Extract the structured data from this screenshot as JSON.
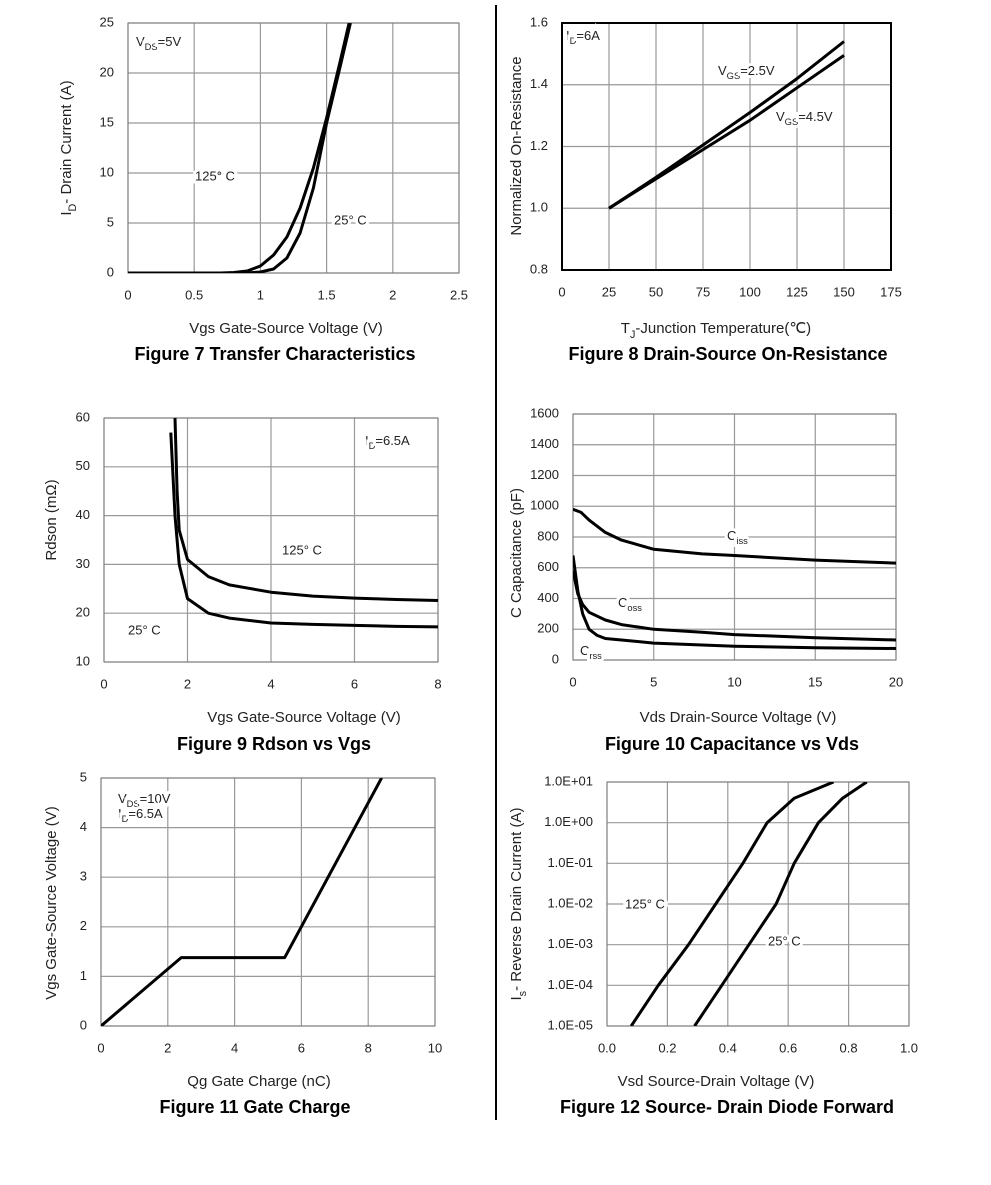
{
  "chart_data": [
    {
      "type": "line",
      "title": "Figure 7 Transfer Characteristics",
      "xlabel": "Vgs Gate-Source Voltage (V)",
      "ylabel": [
        "I",
        "D",
        "- Drain Current (A)"
      ],
      "annotations": [
        [
          "V",
          "DS",
          "=5V"
        ]
      ],
      "xlim": [
        0,
        2.5
      ],
      "ylim": [
        0,
        25
      ],
      "xticks": [
        0,
        0.5,
        1,
        1.5,
        2,
        2.5
      ],
      "yticks": [
        0,
        5,
        10,
        15,
        20,
        25
      ],
      "grid": true,
      "series": [
        {
          "name": "125° C",
          "color": "#000000",
          "x": [
            0,
            0.7,
            0.8,
            0.9,
            1.0,
            1.1,
            1.2,
            1.3,
            1.4,
            1.5,
            1.6,
            1.67
          ],
          "values": [
            0,
            0,
            0.05,
            0.2,
            0.7,
            1.8,
            3.6,
            6.5,
            10.5,
            15.5,
            21,
            25
          ]
        },
        {
          "name": "25° C",
          "color": "#000000",
          "x": [
            0,
            0.9,
            1.0,
            1.1,
            1.2,
            1.3,
            1.4,
            1.5,
            1.6,
            1.68
          ],
          "values": [
            0,
            0,
            0.1,
            0.4,
            1.5,
            4,
            8.5,
            15,
            20.5,
            25
          ]
        }
      ]
    },
    {
      "type": "line",
      "title": "Figure 8 Drain-Source On-Resistance",
      "xlabel": [
        "T",
        "J",
        "-Junction Temperature(℃)"
      ],
      "ylabel": "Normalized On-Resistance",
      "annotations": [
        [
          "I",
          "D",
          "=6A"
        ]
      ],
      "xlim": [
        0,
        175
      ],
      "ylim": [
        0.8,
        1.6
      ],
      "xticks": [
        0,
        25,
        50,
        75,
        100,
        125,
        150,
        175
      ],
      "yticks": [
        0.8,
        {
          "value": 1.0,
          "label": "1.0"
        },
        1.2,
        1.4,
        1.6
      ],
      "grid": true,
      "series": [
        {
          "name": [
            "V",
            "GS",
            "=2.5V"
          ],
          "color": "#000000",
          "x": [
            25,
            50,
            75,
            100,
            125,
            150
          ],
          "values": [
            1.0,
            1.1,
            1.205,
            1.31,
            1.42,
            1.54
          ]
        },
        {
          "name": [
            "V",
            "GS",
            "=4.5V"
          ],
          "color": "#000000",
          "x": [
            25,
            50,
            75,
            100,
            125,
            150
          ],
          "values": [
            1.0,
            1.095,
            1.19,
            1.285,
            1.39,
            1.495
          ]
        }
      ]
    },
    {
      "type": "line",
      "title": "Figure 9 Rdson vs Vgs",
      "xlabel": "Vgs Gate-Source Voltage (V)",
      "ylabel": "Rdson (mΩ)",
      "annotations": [
        [
          "I",
          "D",
          "=6.5A"
        ]
      ],
      "xlim": [
        0,
        8
      ],
      "ylim": [
        10,
        60
      ],
      "xticks": [
        0,
        2,
        4,
        6,
        8
      ],
      "yticks": [
        10,
        20,
        30,
        40,
        50,
        60
      ],
      "grid": true,
      "series": [
        {
          "name": "125° C",
          "color": "#000000",
          "x": [
            1.7,
            1.75,
            1.8,
            2,
            2.5,
            3,
            4,
            5,
            6,
            7,
            8
          ],
          "values": [
            60,
            45,
            37,
            31,
            27.5,
            25.8,
            24.3,
            23.5,
            23.1,
            22.8,
            22.6
          ]
        },
        {
          "name": "25° C",
          "color": "#000000",
          "x": [
            1.6,
            1.7,
            1.8,
            2,
            2.5,
            3,
            4,
            5,
            6,
            7,
            8
          ],
          "values": [
            57,
            40,
            30,
            23,
            20,
            19,
            18,
            17.7,
            17.5,
            17.3,
            17.2
          ]
        }
      ]
    },
    {
      "type": "line",
      "title": "Figure 10 Capacitance vs Vds",
      "xlabel": "Vds Drain-Source Voltage (V)",
      "ylabel": "C Capacitance (pF)",
      "annotations": [],
      "xlim": [
        0,
        20
      ],
      "ylim": [
        0,
        1600
      ],
      "xticks": [
        0,
        5,
        10,
        15,
        20
      ],
      "yticks": [
        0,
        200,
        400,
        600,
        800,
        1000,
        1200,
        1400,
        1600
      ],
      "grid": true,
      "series": [
        {
          "name": [
            "C",
            "iss"
          ],
          "color": "#000000",
          "x": [
            0,
            0.5,
            1,
            2,
            3,
            5,
            8,
            10,
            15,
            20
          ],
          "values": [
            980,
            960,
            910,
            830,
            780,
            720,
            690,
            680,
            650,
            630
          ]
        },
        {
          "name": [
            "C",
            "oss"
          ],
          "color": "#000000",
          "x": [
            0,
            0.3,
            0.6,
            1,
            2,
            3,
            5,
            8,
            10,
            15,
            20
          ],
          "values": [
            580,
            430,
            360,
            310,
            260,
            230,
            200,
            180,
            165,
            145,
            130
          ]
        },
        {
          "name": [
            "C",
            "rss"
          ],
          "color": "#000000",
          "x": [
            0,
            0.3,
            0.6,
            1,
            1.5,
            2,
            3,
            5,
            10,
            15,
            20
          ],
          "values": [
            680,
            450,
            300,
            200,
            160,
            140,
            130,
            110,
            90,
            80,
            75
          ]
        }
      ]
    },
    {
      "type": "line",
      "title": "Figure 11 Gate Charge",
      "xlabel": "Qg Gate Charge (nC)",
      "ylabel": "Vgs Gate-Source Voltage (V)",
      "annotations": [
        [
          "V",
          "DS",
          "=10V"
        ],
        [
          "I",
          "D",
          "=6.5A"
        ]
      ],
      "xlim": [
        0,
        10
      ],
      "ylim": [
        0,
        5
      ],
      "xticks": [
        0,
        2,
        4,
        6,
        8,
        10
      ],
      "yticks": [
        0,
        1,
        2,
        3,
        4,
        5
      ],
      "grid": true,
      "series": [
        {
          "color": "#000000",
          "x": [
            0,
            2.4,
            5.5,
            8.4
          ],
          "values": [
            0,
            1.38,
            1.38,
            5
          ]
        }
      ]
    },
    {
      "type": "line",
      "title": "Figure 12 Source- Drain Diode Forward",
      "xlabel": "Vsd Source-Drain Voltage (V)",
      "ylabel": [
        "I",
        "s",
        "- Reverse Drain Current (A)"
      ],
      "annotations": [],
      "yscale": "log",
      "xlim": [
        0,
        1
      ],
      "ylim": [
        1e-05,
        10
      ],
      "xticks": [
        {
          "value": 0,
          "label": "0.0"
        },
        0.2,
        0.4,
        0.6,
        0.8,
        {
          "value": 1,
          "label": "1.0"
        }
      ],
      "yticks": [
        {
          "value": 1e-05,
          "label": "1.0E-05"
        },
        {
          "value": 0.0001,
          "label": "1.0E-04"
        },
        {
          "value": 0.001,
          "label": "1.0E-03"
        },
        {
          "value": 0.01,
          "label": "1.0E-02"
        },
        {
          "value": 0.1,
          "label": "1.0E-01"
        },
        {
          "value": 1,
          "label": "1.0E+00"
        },
        {
          "value": 10,
          "label": "1.0E+01"
        }
      ],
      "grid": true,
      "series": [
        {
          "name": "125° C",
          "color": "#000000",
          "x": [
            0.08,
            0.17,
            0.27,
            0.36,
            0.45,
            0.53,
            0.62,
            0.75
          ],
          "values": [
            1e-05,
            0.0001,
            0.001,
            0.01,
            0.1,
            1,
            4,
            10
          ]
        },
        {
          "name": "25° C",
          "color": "#000000",
          "x": [
            0.29,
            0.38,
            0.47,
            0.56,
            0.62,
            0.7,
            0.78,
            0.86
          ],
          "values": [
            1e-05,
            0.0001,
            0.001,
            0.01,
            0.1,
            1,
            4,
            10
          ]
        }
      ]
    }
  ]
}
